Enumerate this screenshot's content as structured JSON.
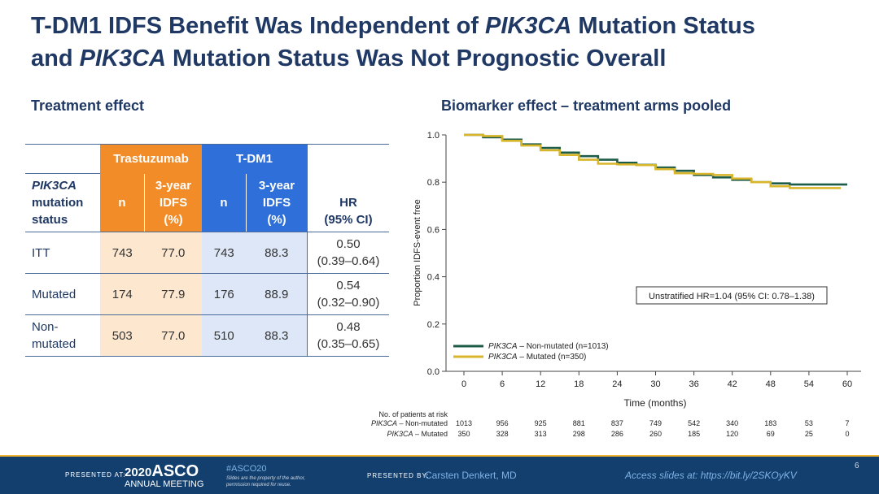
{
  "title": {
    "line1_pre": "T-DM1 IDFS Benefit Was Independent of ",
    "line1_em": "PIK3CA",
    "line1_post": " Mutation Status",
    "line2_pre": "and ",
    "line2_em": "PIK3CA",
    "line2_post": " Mutation Status Was Not Prognostic Overall"
  },
  "treatment_heading": "Treatment effect",
  "biomarker_heading": "Biomarker effect – treatment arms pooled",
  "table": {
    "group_trastuzumab": "Trastuzumab",
    "group_tdm1": "T-DM1",
    "col_status_em": "PIK3CA",
    "col_status_rest1": "mutation",
    "col_status_rest2": "status",
    "col_n": "n",
    "col_idfs1": "3-year",
    "col_idfs2": "IDFS",
    "col_idfs3": "(%)",
    "col_hr1": "HR",
    "col_hr2": "(95% CI)",
    "rows": [
      {
        "label1": "ITT",
        "label2": "",
        "n1": "743",
        "idfs1": "77.0",
        "n2": "743",
        "idfs2": "88.3",
        "hr": "0.50",
        "ci": "(0.39–0.64)"
      },
      {
        "label1": "Mutated",
        "label2": "",
        "n1": "174",
        "idfs1": "77.9",
        "n2": "176",
        "idfs2": "88.9",
        "hr": "0.54",
        "ci": "(0.32–0.90)"
      },
      {
        "label1": "Non-",
        "label2": "mutated",
        "n1": "503",
        "idfs1": "77.0",
        "n2": "510",
        "idfs2": "88.3",
        "hr": "0.48",
        "ci": "(0.35–0.65)"
      }
    ]
  },
  "chart_data": {
    "type": "line",
    "title": "Biomarker effect – treatment arms pooled",
    "xlabel": "Time (months)",
    "ylabel": "Proportion IDFS-event free",
    "xlim": [
      0,
      60
    ],
    "ylim": [
      0.0,
      1.0
    ],
    "xticks": [
      0,
      6,
      12,
      18,
      24,
      30,
      36,
      42,
      48,
      54,
      60
    ],
    "yticks": [
      "0.0",
      "0.2",
      "0.4",
      "0.6",
      "0.8",
      "1.0"
    ],
    "annotation": "Unstratified HR=1.04 (95% CI: 0.78–1.38)",
    "series": [
      {
        "name_em": "PIK3CA",
        "name_rest": " – Non-mutated (n=1013)",
        "color": "#1e5c4a",
        "x": [
          0,
          3,
          6,
          9,
          12,
          15,
          18,
          21,
          24,
          27,
          30,
          33,
          36,
          39,
          42,
          45,
          48,
          51,
          54,
          57,
          60
        ],
        "y": [
          1.0,
          0.99,
          0.98,
          0.96,
          0.945,
          0.925,
          0.91,
          0.895,
          0.882,
          0.873,
          0.862,
          0.848,
          0.83,
          0.82,
          0.81,
          0.8,
          0.795,
          0.79,
          0.79,
          0.79,
          0.79
        ]
      },
      {
        "name_em": "PIK3CA",
        "name_rest": " – Mutated (n=350)",
        "color": "#d8b52a",
        "x": [
          0,
          3,
          6,
          9,
          12,
          15,
          18,
          21,
          24,
          27,
          30,
          33,
          36,
          39,
          42,
          45,
          48,
          51,
          54,
          57,
          59
        ],
        "y": [
          1.0,
          0.995,
          0.975,
          0.955,
          0.935,
          0.915,
          0.895,
          0.878,
          0.875,
          0.872,
          0.855,
          0.838,
          0.835,
          0.83,
          0.815,
          0.8,
          0.783,
          0.775,
          0.775,
          0.775,
          0.775
        ]
      }
    ],
    "risk_table": {
      "heading": "No. of patients at risk",
      "rows": [
        {
          "label_em": "PIK3CA",
          "label_rest": " – Non-mutated",
          "values": [
            "1013",
            "956",
            "925",
            "881",
            "837",
            "749",
            "542",
            "340",
            "183",
            "53",
            "7"
          ]
        },
        {
          "label_em": "PIK3CA",
          "label_rest": " – Mutated",
          "values": [
            "350",
            "328",
            "313",
            "298",
            "286",
            "260",
            "185",
            "120",
            "69",
            "25",
            "0"
          ]
        }
      ]
    }
  },
  "footer": {
    "presented_at": "PRESENTED AT:",
    "asco_year": "2020",
    "asco_name": "ASCO",
    "asco_sub": "ANNUAL MEETING",
    "hashtag": "#ASCO20",
    "disclaimer1": "Slides are the property of the author,",
    "disclaimer2": "permission required for reuse.",
    "presented_by": "PRESENTED BY:",
    "presenter": "Carsten Denkert, MD",
    "access": "Access slides at: https://bit.ly/2SKOyKV",
    "page_number": "6"
  }
}
